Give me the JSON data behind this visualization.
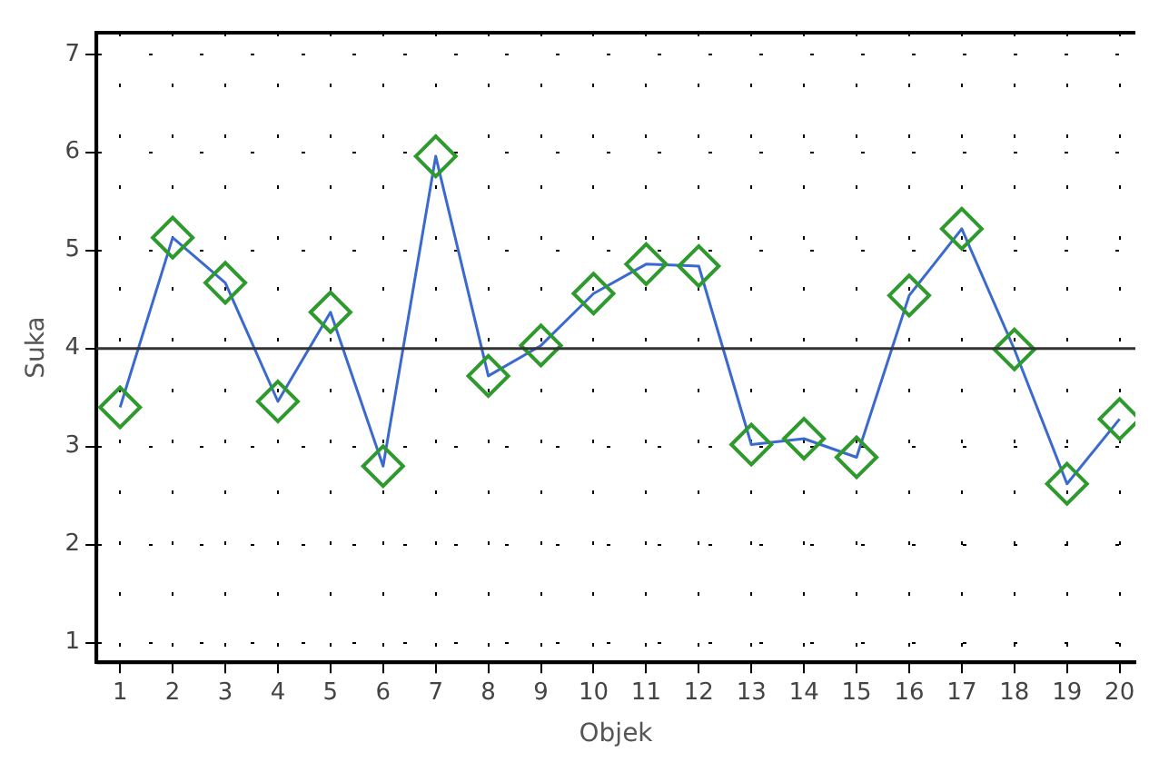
{
  "chart_data": {
    "type": "line",
    "xlabel": "Objek",
    "ylabel": "Suka",
    "x": [
      1,
      2,
      3,
      4,
      5,
      6,
      7,
      8,
      9,
      10,
      11,
      12,
      13,
      14,
      15,
      16,
      17,
      18,
      19,
      20
    ],
    "series": [
      {
        "color": "#3a6ad0",
        "values": [
          3.4,
          5.13,
          4.67,
          3.46,
          4.37,
          2.8,
          5.96,
          3.72,
          4.03,
          4.56,
          4.86,
          4.84,
          3.02,
          3.08,
          2.89,
          4.54,
          5.22,
          3.99,
          2.62,
          3.28
        ]
      }
    ],
    "marker": "diamond",
    "xlim": [
      0.55,
      20.3
    ],
    "xticks": [
      1,
      2,
      3,
      4,
      5,
      6,
      7,
      8,
      9,
      10,
      11,
      12,
      13,
      14,
      15,
      16,
      17,
      18,
      19,
      20
    ],
    "ylim": [
      0.8,
      7.22
    ],
    "yticks": [
      1,
      2,
      3,
      4,
      5,
      6,
      7
    ],
    "grid": true,
    "legend": false,
    "ref_lines": [
      {
        "axis": "y",
        "value": 4,
        "color": "#333333"
      }
    ]
  }
}
